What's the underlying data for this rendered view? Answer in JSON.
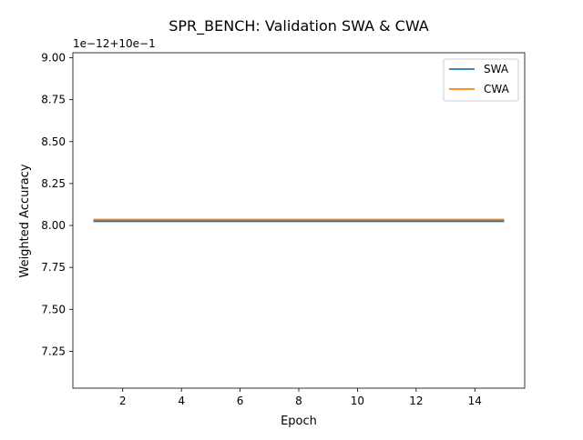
{
  "chart_data": {
    "type": "line",
    "title": "SPR_BENCH: Validation SWA & CWA",
    "xlabel": "Epoch",
    "ylabel": "Weighted Accuracy",
    "offset_text": "1e−12+10e−1",
    "x": [
      1,
      2,
      3,
      4,
      5,
      6,
      7,
      8,
      9,
      10,
      11,
      12,
      13,
      14,
      15
    ],
    "xlim": [
      0.3,
      15.7
    ],
    "ylim": [
      7.03,
      9.03
    ],
    "x_ticks": [
      2,
      4,
      6,
      8,
      10,
      12,
      14
    ],
    "x_tick_labels": [
      "2",
      "4",
      "6",
      "8",
      "10",
      "12",
      "14"
    ],
    "y_ticks": [
      7.25,
      7.5,
      7.75,
      8.0,
      8.25,
      8.5,
      8.75,
      9.0
    ],
    "y_tick_labels": [
      "7.25",
      "7.50",
      "7.75",
      "8.00",
      "8.25",
      "8.50",
      "8.75",
      "9.00"
    ],
    "grid": false,
    "legend_placement": "top-right",
    "series": [
      {
        "name": "SWA",
        "color": "#1f77b4",
        "values": [
          8.025,
          8.025,
          8.025,
          8.025,
          8.025,
          8.025,
          8.025,
          8.025,
          8.025,
          8.025,
          8.025,
          8.025,
          8.025,
          8.025,
          8.025
        ]
      },
      {
        "name": "CWA",
        "color": "#ff7f0e",
        "values": [
          8.035,
          8.035,
          8.035,
          8.035,
          8.035,
          8.035,
          8.035,
          8.035,
          8.035,
          8.035,
          8.035,
          8.035,
          8.035,
          8.035,
          8.035
        ]
      }
    ]
  }
}
